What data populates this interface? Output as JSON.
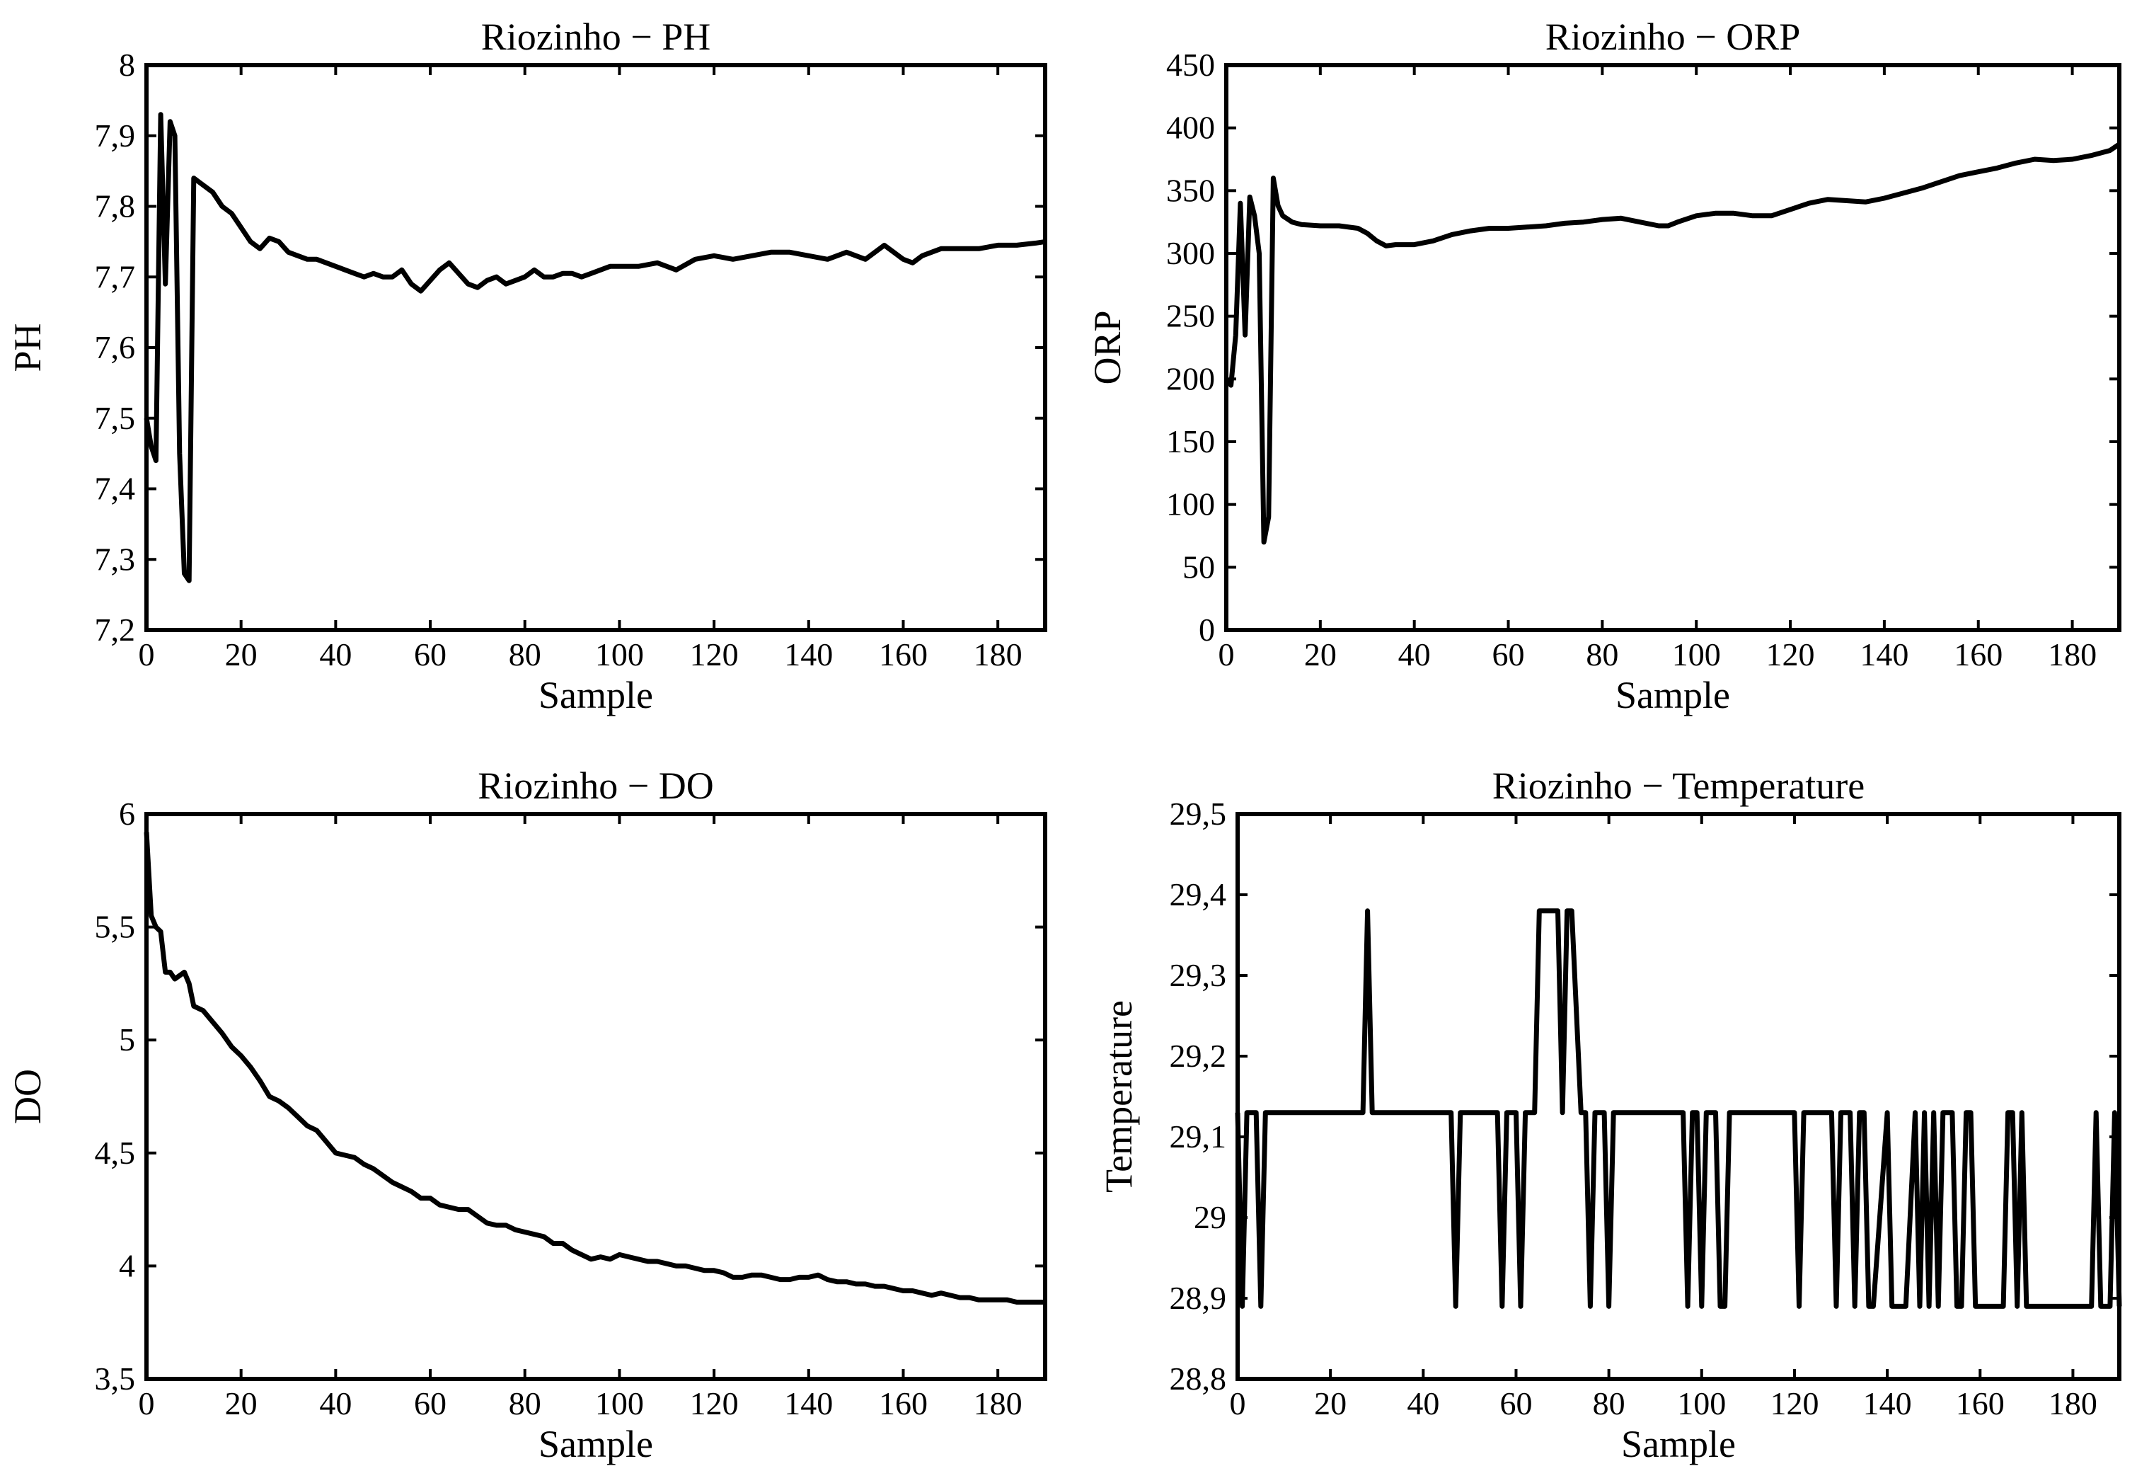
{
  "chart_data": [
    {
      "id": "ph",
      "type": "line",
      "title": "Riozinho − PH",
      "xlabel": "Sample",
      "ylabel": "PH",
      "xlim": [
        0,
        190
      ],
      "ylim": [
        7.2,
        8.0
      ],
      "xticks": [
        0,
        20,
        40,
        60,
        80,
        100,
        120,
        140,
        160,
        180
      ],
      "xtick_labels": [
        "0",
        "20",
        "40",
        "60",
        "80",
        "100",
        "120",
        "140",
        "160",
        "180"
      ],
      "yticks": [
        7.2,
        7.3,
        7.4,
        7.5,
        7.6,
        7.7,
        7.8,
        7.9,
        8.0
      ],
      "ytick_labels": [
        "7,2",
        "7,3",
        "7,4",
        "7,5",
        "7,6",
        "7,7",
        "7,8",
        "7,9",
        "8"
      ],
      "grid": false,
      "series": [
        {
          "name": "PH",
          "x": [
            0,
            1,
            2,
            3,
            4,
            5,
            6,
            7,
            8,
            9,
            10,
            12,
            14,
            16,
            18,
            20,
            22,
            24,
            26,
            28,
            30,
            32,
            34,
            36,
            38,
            40,
            42,
            44,
            46,
            48,
            50,
            52,
            54,
            56,
            58,
            60,
            62,
            64,
            66,
            68,
            70,
            72,
            74,
            76,
            78,
            80,
            82,
            84,
            86,
            88,
            90,
            92,
            94,
            96,
            98,
            100,
            104,
            108,
            112,
            116,
            120,
            124,
            128,
            132,
            136,
            140,
            144,
            148,
            152,
            156,
            158,
            160,
            162,
            164,
            168,
            172,
            176,
            180,
            184,
            188,
            190
          ],
          "y": [
            7.5,
            7.46,
            7.44,
            7.93,
            7.69,
            7.92,
            7.9,
            7.45,
            7.28,
            7.27,
            7.84,
            7.83,
            7.82,
            7.8,
            7.79,
            7.77,
            7.75,
            7.74,
            7.755,
            7.75,
            7.735,
            7.73,
            7.725,
            7.725,
            7.72,
            7.715,
            7.71,
            7.705,
            7.7,
            7.705,
            7.7,
            7.7,
            7.71,
            7.69,
            7.68,
            7.695,
            7.71,
            7.72,
            7.705,
            7.69,
            7.685,
            7.695,
            7.7,
            7.69,
            7.695,
            7.7,
            7.71,
            7.7,
            7.7,
            7.705,
            7.705,
            7.7,
            7.705,
            7.71,
            7.715,
            7.715,
            7.715,
            7.72,
            7.71,
            7.725,
            7.73,
            7.725,
            7.73,
            7.735,
            7.735,
            7.73,
            7.725,
            7.735,
            7.725,
            7.745,
            7.735,
            7.725,
            7.72,
            7.73,
            7.74,
            7.74,
            7.74,
            7.745,
            7.745,
            7.748,
            7.75
          ]
        }
      ]
    },
    {
      "id": "orp",
      "type": "line",
      "title": "Riozinho − ORP",
      "xlabel": "Sample",
      "ylabel": "ORP",
      "xlim": [
        0,
        190
      ],
      "ylim": [
        0,
        450
      ],
      "xticks": [
        0,
        20,
        40,
        60,
        80,
        100,
        120,
        140,
        160,
        180
      ],
      "xtick_labels": [
        "0",
        "20",
        "40",
        "60",
        "80",
        "100",
        "120",
        "140",
        "160",
        "180"
      ],
      "yticks": [
        0,
        50,
        100,
        150,
        200,
        250,
        300,
        350,
        400,
        450
      ],
      "ytick_labels": [
        "0",
        "50",
        "100",
        "150",
        "200",
        "250",
        "300",
        "350",
        "400",
        "450"
      ],
      "grid": false,
      "series": [
        {
          "name": "ORP",
          "x": [
            0,
            1,
            2,
            3,
            4,
            5,
            6,
            7,
            8,
            9,
            10,
            11,
            12,
            14,
            16,
            20,
            24,
            28,
            30,
            32,
            34,
            36,
            40,
            44,
            48,
            52,
            56,
            60,
            64,
            68,
            72,
            76,
            80,
            84,
            88,
            92,
            94,
            96,
            100,
            104,
            108,
            112,
            116,
            120,
            124,
            128,
            132,
            136,
            140,
            144,
            148,
            152,
            156,
            160,
            164,
            168,
            172,
            176,
            180,
            184,
            188,
            190
          ],
          "y": [
            200,
            195,
            235,
            340,
            235,
            345,
            330,
            300,
            70,
            90,
            360,
            338,
            330,
            325,
            323,
            322,
            322,
            320,
            316,
            310,
            306,
            307,
            307,
            310,
            315,
            318,
            320,
            320,
            321,
            322,
            324,
            325,
            327,
            328,
            325,
            322,
            322,
            325,
            330,
            332,
            332,
            330,
            330,
            335,
            340,
            343,
            342,
            341,
            344,
            348,
            352,
            357,
            362,
            365,
            368,
            372,
            375,
            374,
            375,
            378,
            382,
            387
          ]
        }
      ]
    },
    {
      "id": "do",
      "type": "line",
      "title": "Riozinho − DO",
      "xlabel": "Sample",
      "ylabel": "DO",
      "xlim": [
        0,
        190
      ],
      "ylim": [
        3.5,
        6.0
      ],
      "xticks": [
        0,
        20,
        40,
        60,
        80,
        100,
        120,
        140,
        160,
        180
      ],
      "xtick_labels": [
        "0",
        "20",
        "40",
        "60",
        "80",
        "100",
        "120",
        "140",
        "160",
        "180"
      ],
      "yticks": [
        3.5,
        4.0,
        4.5,
        5.0,
        5.5,
        6.0
      ],
      "ytick_labels": [
        "3,5",
        "4",
        "4,5",
        "5",
        "5,5",
        "6"
      ],
      "grid": false,
      "series": [
        {
          "name": "DO",
          "x": [
            0,
            1,
            2,
            3,
            4,
            5,
            6,
            8,
            9,
            10,
            12,
            14,
            16,
            18,
            20,
            22,
            24,
            26,
            28,
            30,
            32,
            34,
            36,
            38,
            40,
            42,
            44,
            46,
            48,
            50,
            52,
            54,
            56,
            58,
            60,
            62,
            64,
            66,
            68,
            70,
            72,
            74,
            76,
            78,
            80,
            82,
            84,
            86,
            88,
            90,
            92,
            94,
            96,
            98,
            100,
            102,
            104,
            106,
            108,
            110,
            112,
            114,
            116,
            118,
            120,
            122,
            124,
            126,
            128,
            130,
            132,
            134,
            136,
            138,
            140,
            142,
            144,
            146,
            148,
            150,
            152,
            154,
            156,
            158,
            160,
            162,
            164,
            166,
            168,
            170,
            172,
            174,
            176,
            178,
            180,
            182,
            184,
            186,
            188,
            190
          ],
          "y": [
            5.92,
            5.55,
            5.5,
            5.48,
            5.3,
            5.3,
            5.27,
            5.3,
            5.25,
            5.15,
            5.13,
            5.08,
            5.03,
            4.97,
            4.93,
            4.88,
            4.82,
            4.75,
            4.73,
            4.7,
            4.66,
            4.62,
            4.6,
            4.55,
            4.5,
            4.49,
            4.48,
            4.45,
            4.43,
            4.4,
            4.37,
            4.35,
            4.33,
            4.3,
            4.3,
            4.27,
            4.26,
            4.25,
            4.25,
            4.22,
            4.19,
            4.18,
            4.18,
            4.16,
            4.15,
            4.14,
            4.13,
            4.1,
            4.1,
            4.07,
            4.05,
            4.03,
            4.04,
            4.03,
            4.05,
            4.04,
            4.03,
            4.02,
            4.02,
            4.01,
            4.0,
            4.0,
            3.99,
            3.98,
            3.98,
            3.97,
            3.95,
            3.95,
            3.96,
            3.96,
            3.95,
            3.94,
            3.94,
            3.95,
            3.95,
            3.96,
            3.94,
            3.93,
            3.93,
            3.92,
            3.92,
            3.91,
            3.91,
            3.9,
            3.89,
            3.89,
            3.88,
            3.87,
            3.88,
            3.87,
            3.86,
            3.86,
            3.85,
            3.85,
            3.85,
            3.85,
            3.84,
            3.84,
            3.84,
            3.84
          ]
        }
      ]
    },
    {
      "id": "temperature",
      "type": "line",
      "title": "Riozinho − Temperature",
      "xlabel": "Sample",
      "ylabel": "Temperature",
      "xlim": [
        0,
        190
      ],
      "ylim": [
        28.8,
        29.5
      ],
      "xticks": [
        0,
        20,
        40,
        60,
        80,
        100,
        120,
        140,
        160,
        180
      ],
      "xtick_labels": [
        "0",
        "20",
        "40",
        "60",
        "80",
        "100",
        "120",
        "140",
        "160",
        "180"
      ],
      "yticks": [
        28.8,
        28.9,
        29.0,
        29.1,
        29.2,
        29.3,
        29.4,
        29.5
      ],
      "ytick_labels": [
        "28,8",
        "28,9",
        "29",
        "29,1",
        "29,2",
        "29,3",
        "29,4",
        "29,5"
      ],
      "grid": false,
      "series": [
        {
          "name": "Temperature",
          "x": [
            0,
            1,
            2,
            3,
            4,
            5,
            6,
            7,
            8,
            27,
            28,
            29,
            30,
            46,
            47,
            48,
            56,
            57,
            58,
            60,
            61,
            62,
            64,
            65,
            69,
            70,
            71,
            72,
            74,
            75,
            76,
            77,
            78,
            79,
            80,
            81,
            82,
            83,
            96,
            97,
            98,
            99,
            100,
            101,
            103,
            104,
            105,
            106,
            120,
            121,
            122,
            128,
            129,
            130,
            132,
            133,
            134,
            135,
            136,
            137,
            140,
            141,
            142,
            143,
            144,
            146,
            147,
            148,
            149,
            150,
            151,
            152,
            154,
            155,
            156,
            157,
            158,
            159,
            165,
            166,
            167,
            168,
            169,
            170,
            180,
            181,
            182,
            184,
            185,
            186,
            187,
            188,
            189,
            190
          ],
          "y": [
            29.13,
            28.89,
            29.13,
            29.13,
            29.13,
            28.89,
            29.13,
            29.13,
            29.13,
            29.13,
            29.38,
            29.13,
            29.13,
            29.13,
            28.89,
            29.13,
            29.13,
            28.89,
            29.13,
            29.13,
            28.89,
            29.13,
            29.13,
            29.38,
            29.38,
            29.13,
            29.38,
            29.38,
            29.13,
            29.13,
            28.89,
            29.13,
            29.13,
            29.13,
            28.89,
            29.13,
            29.13,
            29.13,
            29.13,
            28.89,
            29.13,
            29.13,
            28.89,
            29.13,
            29.13,
            28.89,
            28.89,
            29.13,
            29.13,
            28.89,
            29.13,
            29.13,
            28.89,
            29.13,
            29.13,
            28.89,
            29.13,
            29.13,
            28.89,
            28.89,
            29.13,
            28.89,
            28.89,
            28.89,
            28.89,
            29.13,
            28.89,
            29.13,
            28.89,
            29.13,
            28.89,
            29.13,
            29.13,
            28.89,
            28.89,
            29.13,
            29.13,
            28.89,
            28.89,
            29.13,
            29.13,
            28.89,
            29.13,
            28.89,
            28.89,
            28.89,
            28.89,
            28.89,
            29.13,
            28.89,
            28.89,
            28.89,
            29.13,
            28.89
          ]
        }
      ]
    }
  ]
}
